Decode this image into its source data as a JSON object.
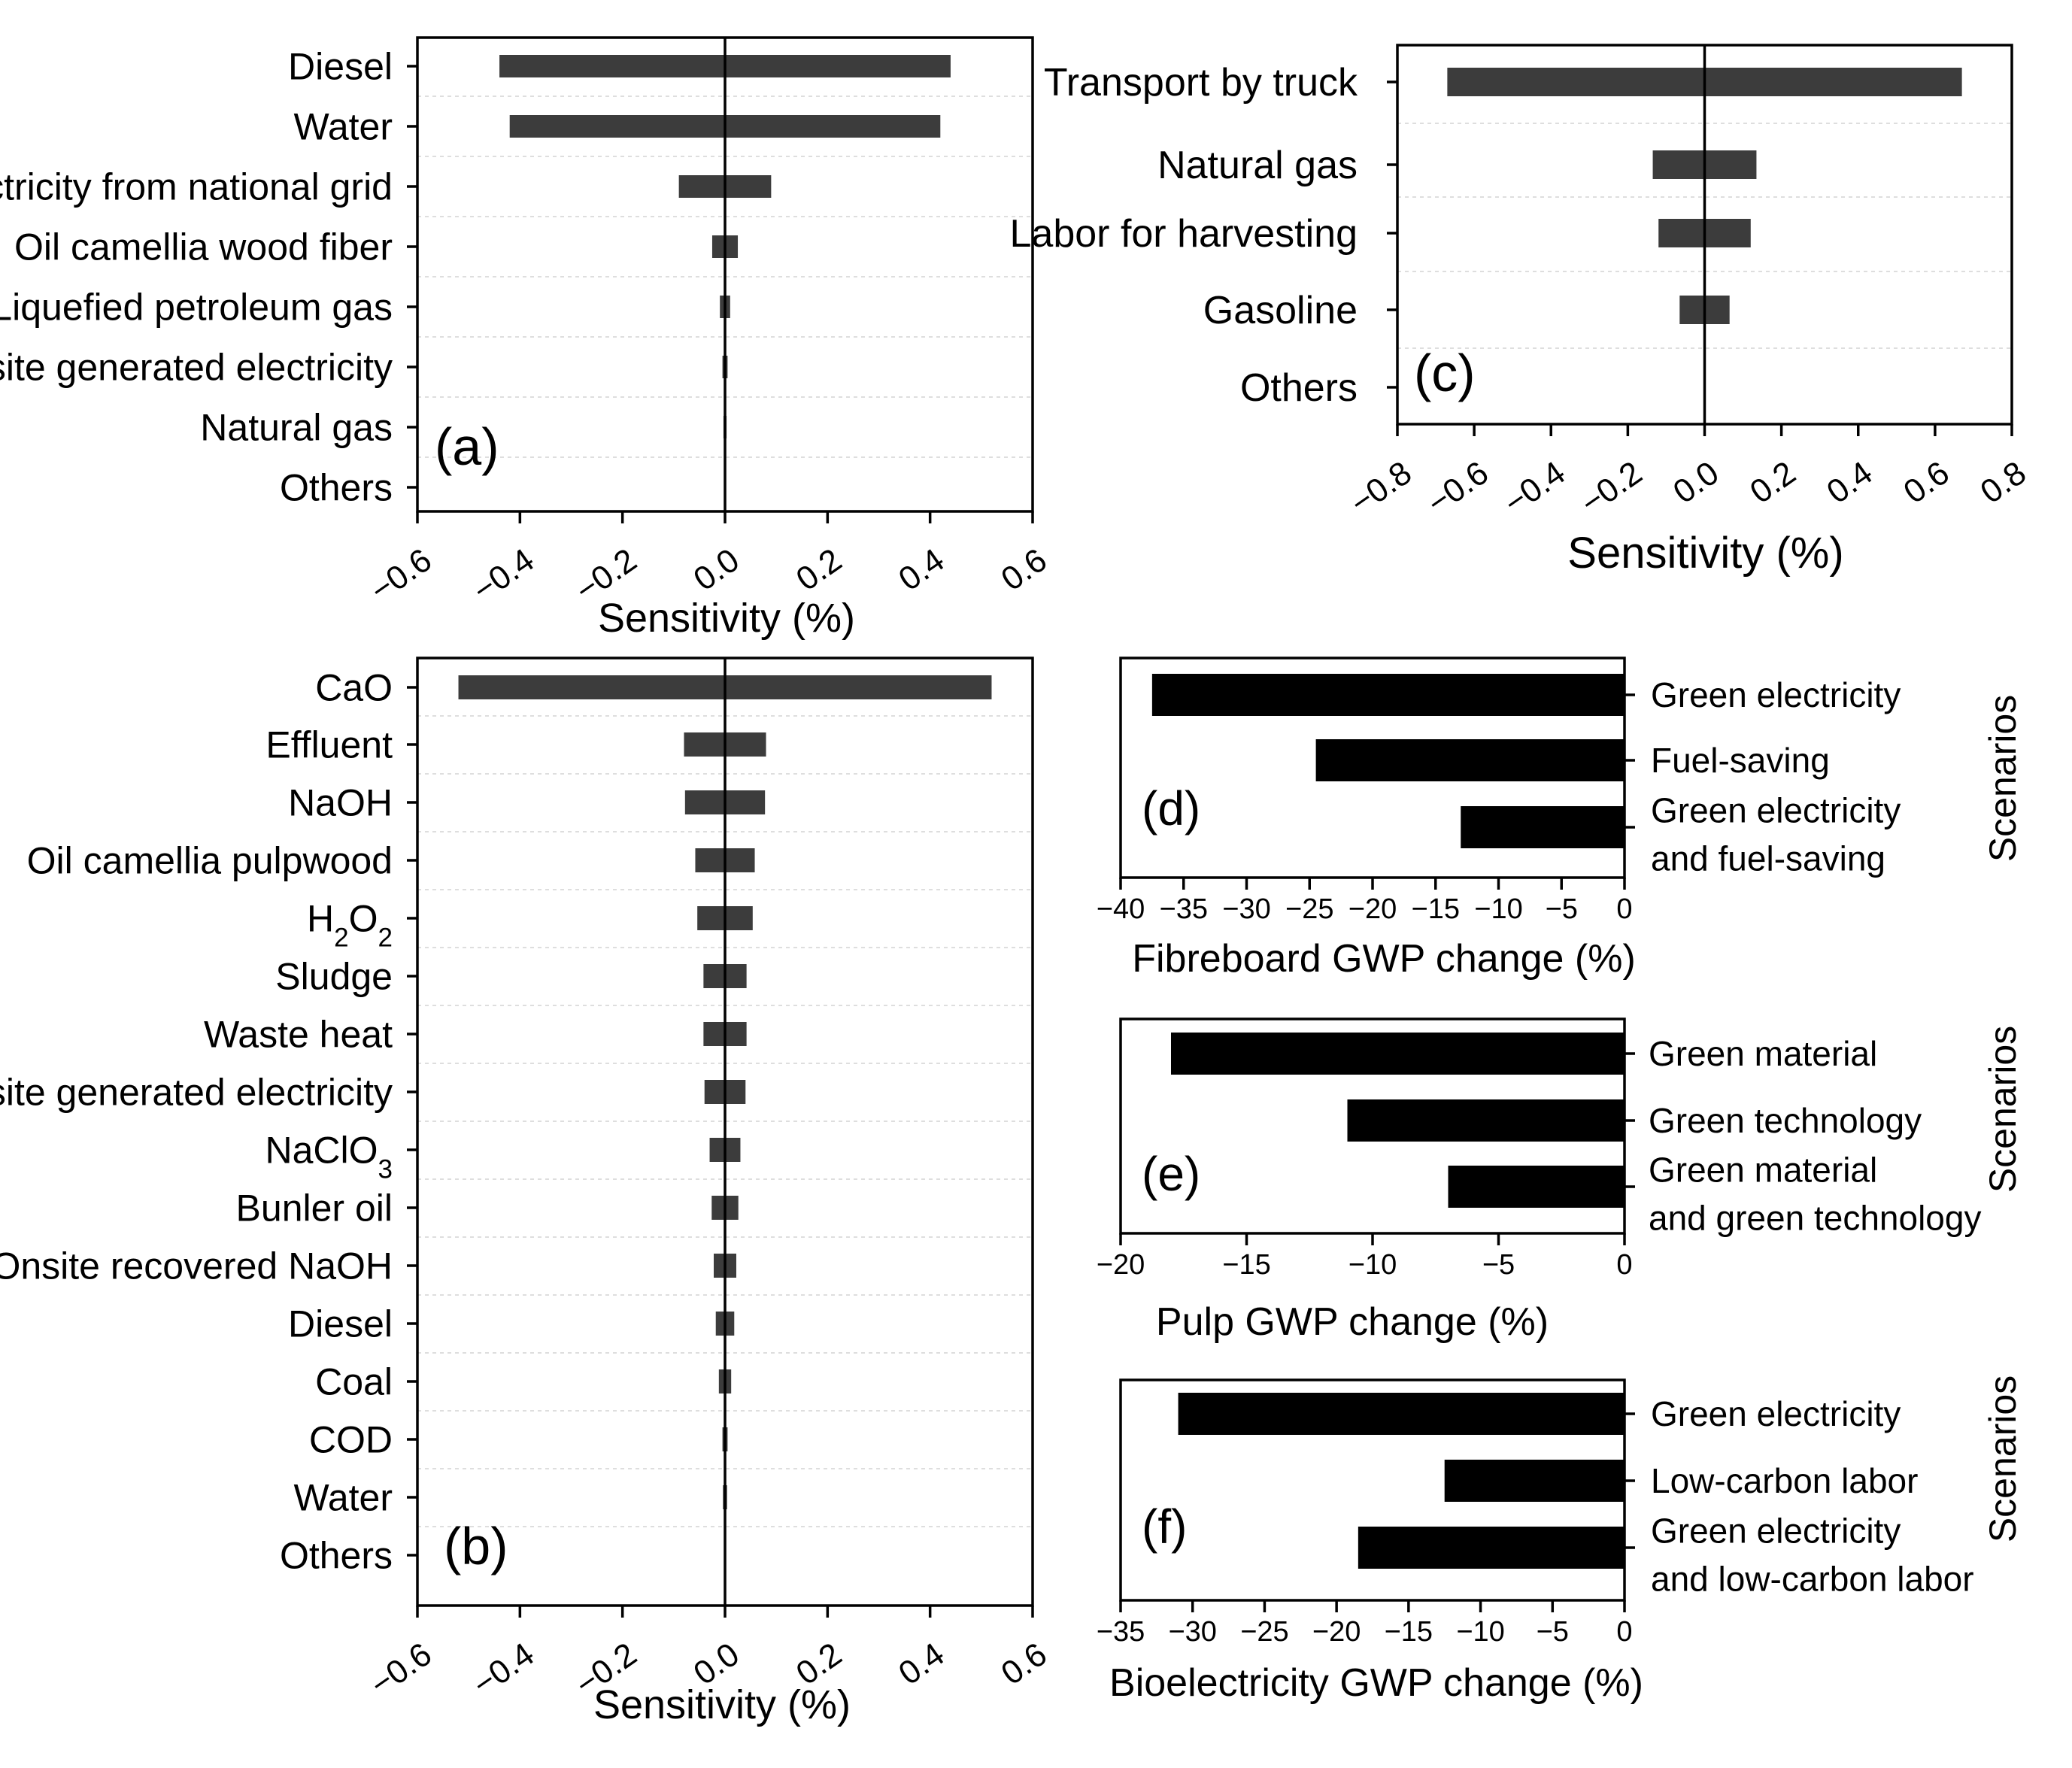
{
  "colors": {
    "sensitivity_bar": "#3c3c3c",
    "scenario_bar": "#000000",
    "axis": "#000000",
    "grid": "#d4d4d4"
  },
  "chart_data": [
    {
      "panel": "(a)",
      "type": "bar",
      "orientation": "horizontal",
      "xlabel": "Sensitivity (%)",
      "ylabel": "",
      "xlim": [
        -0.6,
        0.6
      ],
      "xticks": [
        "-0.6",
        "-0.4",
        "-0.2",
        "0.0",
        "0.2",
        "0.4",
        "0.6"
      ],
      "grid": "dashed horizontal",
      "categories": [
        "Diesel",
        "Water",
        "Electricity from national grid",
        "Oil camellia wood  fiber",
        "Liquefied petroleum gas",
        "Onsite generated electricity",
        "Natural gas",
        "Others"
      ],
      "series": [
        {
          "values_low": [
            -0.44,
            -0.42,
            -0.09,
            -0.025,
            -0.01,
            -0.005,
            -0.003,
            0
          ],
          "values_high": [
            0.44,
            0.42,
            0.09,
            0.025,
            0.01,
            0.005,
            0.003,
            0
          ]
        }
      ]
    },
    {
      "panel": "(b)",
      "type": "bar",
      "orientation": "horizontal",
      "xlabel": "Sensitivity (%)",
      "ylabel": "",
      "xlim": [
        -0.6,
        0.6
      ],
      "xticks": [
        "-0.6",
        "-0.4",
        "-0.2",
        "0.0",
        "0.2",
        "0.4",
        "0.6"
      ],
      "grid": "dashed horizontal",
      "categories": [
        "CaO",
        "Effluent",
        "NaOH",
        "Oil camellia pulpwood",
        "H₂O₂",
        "Sludge",
        "Waste heat",
        "Onsite generated electricity",
        "NaClO₃",
        "Bunler oil",
        "Onsite recovered NaOH",
        "Diesel",
        "Coal",
        "COD",
        "Water",
        "Others"
      ],
      "series": [
        {
          "values_low": [
            -0.52,
            -0.08,
            -0.078,
            -0.058,
            -0.054,
            -0.042,
            -0.042,
            -0.04,
            -0.03,
            -0.026,
            -0.022,
            -0.018,
            -0.012,
            -0.005,
            -0.004,
            0
          ],
          "values_high": [
            0.52,
            0.08,
            0.078,
            0.058,
            0.054,
            0.042,
            0.042,
            0.04,
            0.03,
            0.026,
            0.022,
            0.018,
            0.012,
            0.005,
            0.004,
            0
          ]
        }
      ]
    },
    {
      "panel": "(c)",
      "type": "bar",
      "orientation": "horizontal",
      "xlabel": "Sensitivity (%)",
      "ylabel": "",
      "xlim": [
        -0.8,
        0.8
      ],
      "xticks": [
        "-0.8",
        "-0.6",
        "-0.4",
        "-0.2",
        "0.0",
        "0.2",
        "0.4",
        "0.6",
        "0.8"
      ],
      "grid": "dashed horizontal",
      "categories": [
        "Transport by truck",
        "Natural gas",
        "Labor for harvesting",
        "Gasoline",
        "Others"
      ],
      "series": [
        {
          "values_low": [
            -0.67,
            -0.135,
            -0.12,
            -0.065,
            0
          ],
          "values_high": [
            0.67,
            0.135,
            0.12,
            0.065,
            0
          ]
        }
      ]
    },
    {
      "panel": "(d)",
      "type": "bar",
      "orientation": "horizontal",
      "xlabel": "Fibreboard GWP change (%)",
      "ylabel": "Scenarios",
      "xlim": [
        -40,
        0
      ],
      "xticks": [
        "-40",
        "-35",
        "-30",
        "-25",
        "-20",
        "-15",
        "-10",
        "-5",
        "0"
      ],
      "categories": [
        [
          "Green electricity"
        ],
        [
          "Fuel-saving"
        ],
        [
          "Green electricity",
          "and fuel-saving"
        ]
      ],
      "values": [
        -37.5,
        -24.5,
        -13
      ]
    },
    {
      "panel": "(e)",
      "type": "bar",
      "orientation": "horizontal",
      "xlabel": "Pulp GWP change (%)",
      "ylabel": "Scenarios",
      "xlim": [
        -20,
        0
      ],
      "xticks": [
        "-20",
        "-15",
        "-10",
        "-5",
        "0"
      ],
      "categories": [
        [
          "Green material"
        ],
        [
          "Green technology"
        ],
        [
          "Green material",
          "and green technology"
        ]
      ],
      "values": [
        -18,
        -11,
        -7
      ]
    },
    {
      "panel": "(f)",
      "type": "bar",
      "orientation": "horizontal",
      "xlabel": "Bioelectricity GWP change (%)",
      "ylabel": "Scenarios",
      "xlim": [
        -35,
        0
      ],
      "xticks": [
        "-35",
        "-30",
        "-25",
        "-20",
        "-15",
        "-10",
        "-5",
        "0"
      ],
      "categories": [
        [
          "Green electricity"
        ],
        [
          "Low-carbon labor"
        ],
        [
          "Green electricity",
          "and low-carbon labor"
        ]
      ],
      "values": [
        -31,
        -12.5,
        -18.5
      ]
    }
  ]
}
